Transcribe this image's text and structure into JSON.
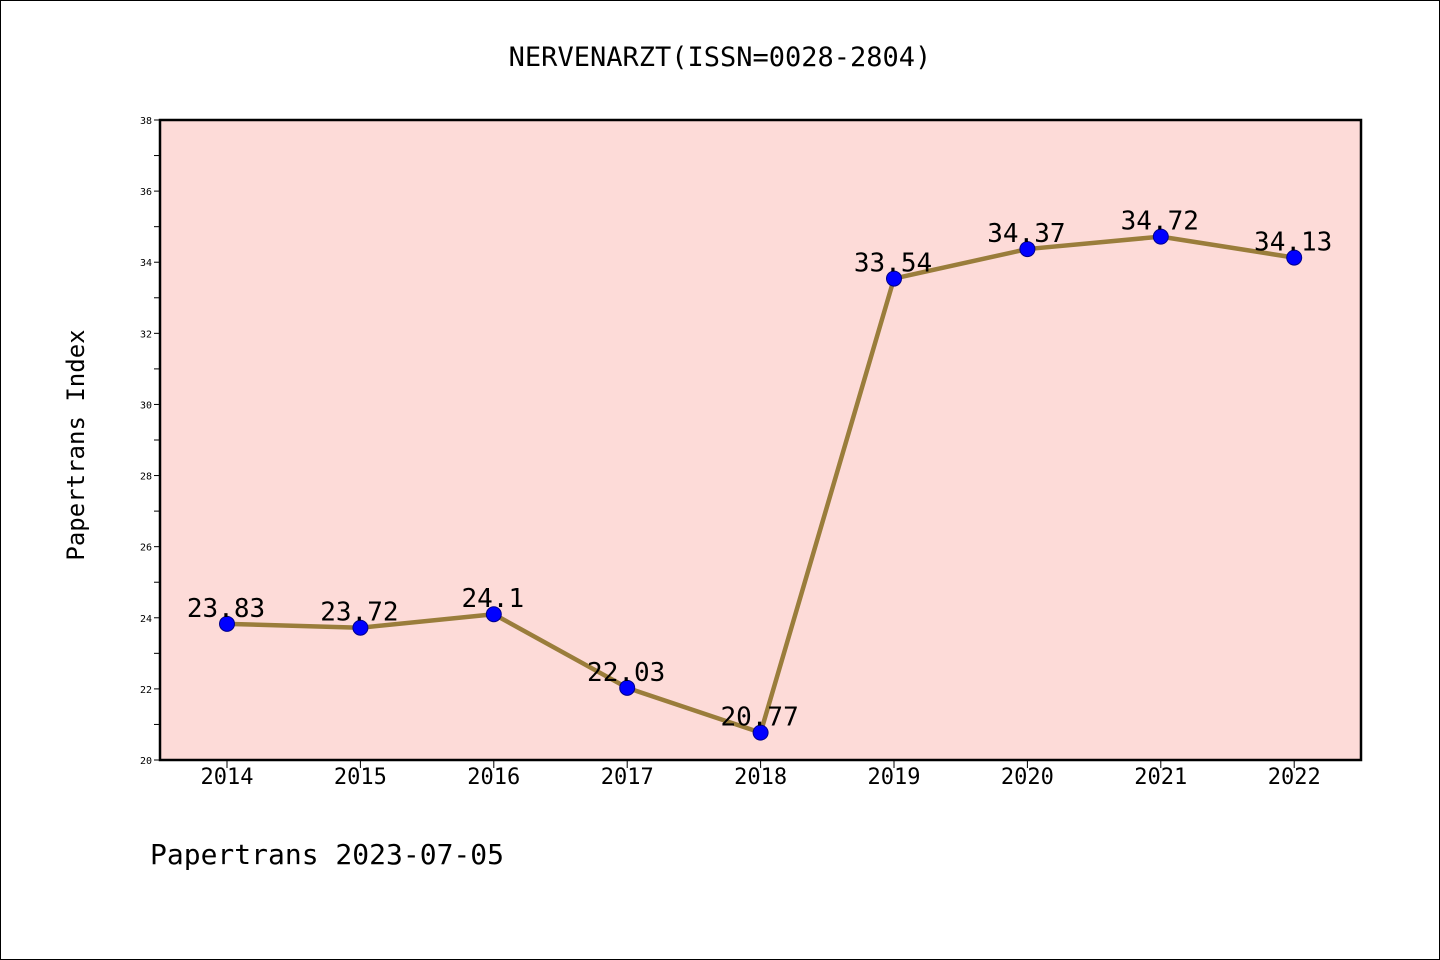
{
  "chart_data": {
    "type": "line",
    "title": "NERVENARZT(ISSN=0028-2804)",
    "ylabel": "Papertrans Index",
    "xlabel": "",
    "footer": "Papertrans 2023-07-05",
    "categories": [
      "2014",
      "2015",
      "2016",
      "2017",
      "2018",
      "2019",
      "2020",
      "2021",
      "2022"
    ],
    "series": [
      {
        "values": [
          23.83,
          23.72,
          24.1,
          22.03,
          20.77,
          33.54,
          34.37,
          34.72,
          34.13
        ],
        "labels": [
          "23.83",
          "23.72",
          "24.1",
          "22.03",
          "20.77",
          "33.54",
          "34.37",
          "34.72",
          "34.13"
        ]
      }
    ],
    "ylim": [
      20,
      38
    ],
    "yticks": [
      "20",
      "22",
      "24",
      "26",
      "28",
      "30",
      "32",
      "34",
      "36",
      "38"
    ],
    "grid": false,
    "legend": "none",
    "colors": {
      "plot_background": "#fddbd8",
      "line": "#9a7d3b",
      "marker": "#0000ff",
      "marker_edge": "#00008b"
    }
  }
}
